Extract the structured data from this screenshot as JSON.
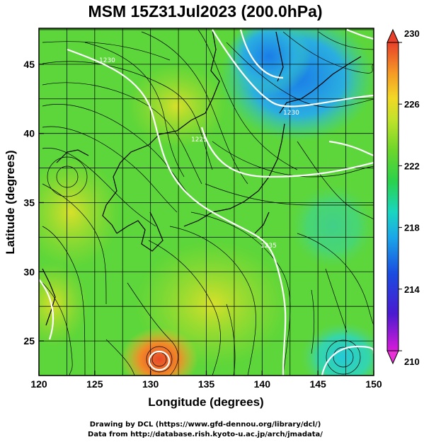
{
  "title": "MSM 15Z31Jul2023 (200.0hPa)",
  "x_axis": {
    "label": "Longitude (degrees)",
    "range": [
      120,
      150
    ],
    "ticks": [
      "120",
      "125",
      "130",
      "135",
      "140",
      "145",
      "150"
    ]
  },
  "y_axis": {
    "label": "Latitude  (degrees)",
    "range": [
      22.5,
      47.6
    ],
    "ticks": [
      "25",
      "30",
      "35",
      "40",
      "45"
    ]
  },
  "colorbar": {
    "range": [
      210,
      230
    ],
    "ticks": [
      "230",
      "226",
      "222",
      "218",
      "214",
      "210"
    ]
  },
  "map": {
    "variable_shading": "temperature (K)",
    "contour_color": "#ffffff",
    "streamline_color": "#000000",
    "contour_labels": [
      "1230",
      "1230",
      "1225",
      "1235"
    ]
  },
  "credits": {
    "line1": "Drawing by DCL (https://www.gfd-dennou.org/library/dcl/)",
    "line2": "Data from http://database.rish.kyoto-u.ac.jp/arch/jmadata/"
  }
}
